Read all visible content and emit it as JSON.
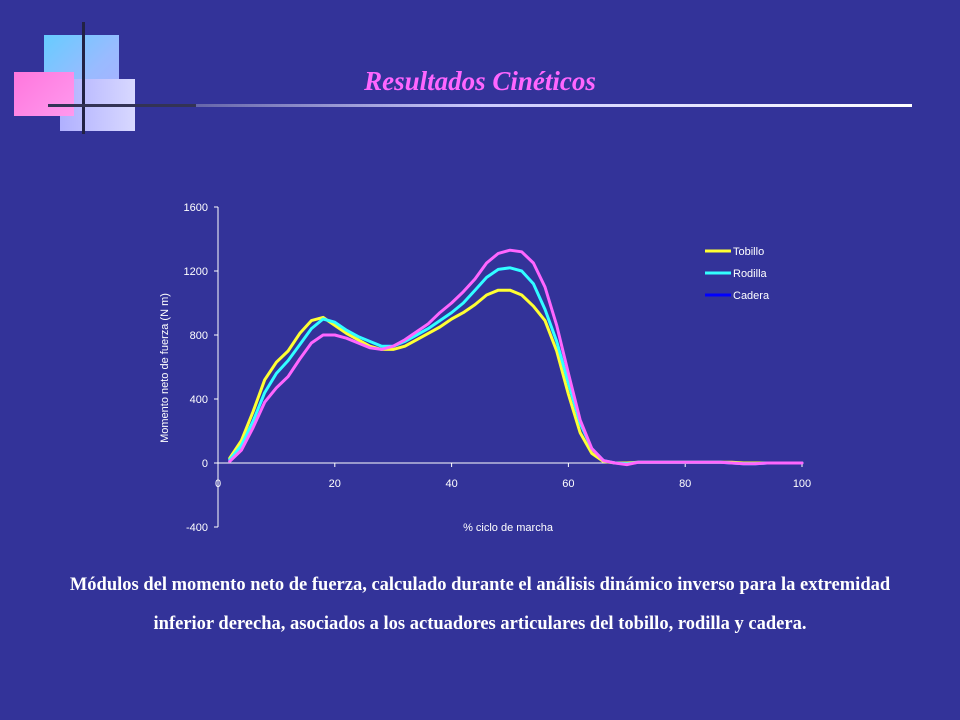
{
  "title": "Resultados Cinéticos",
  "caption": "Módulos del momento neto de fuerza, calculado durante el análisis dinámico inverso para la extremidad inferior derecha, asociados a los actuadores articulares del tobillo, rodilla y cadera.",
  "chart_data": {
    "type": "line",
    "xlabel": "% ciclo de marcha",
    "ylabel": "Momento neto de fuerza (N m)",
    "xlim": [
      0,
      100
    ],
    "ylim": [
      -400,
      1600
    ],
    "xticks": [
      0,
      20,
      40,
      60,
      80,
      100
    ],
    "yticks": [
      -400,
      0,
      400,
      800,
      1200,
      1600
    ],
    "grid": false,
    "legend_position": "top-right",
    "series": [
      {
        "name": "Tobillo",
        "color": "#ffff33",
        "x": [
          2,
          4,
          6,
          8,
          10,
          12,
          14,
          16,
          18,
          20,
          22,
          24,
          26,
          28,
          30,
          32,
          34,
          36,
          38,
          40,
          42,
          44,
          46,
          48,
          50,
          52,
          54,
          56,
          58,
          60,
          62,
          64,
          66,
          68,
          70,
          72,
          74,
          76,
          78,
          80,
          82,
          84,
          86,
          88,
          90,
          92,
          94,
          96,
          98,
          100
        ],
        "y": [
          30,
          140,
          320,
          520,
          630,
          700,
          810,
          890,
          910,
          860,
          810,
          770,
          730,
          710,
          710,
          730,
          770,
          810,
          850,
          900,
          940,
          990,
          1050,
          1080,
          1080,
          1050,
          980,
          890,
          700,
          430,
          190,
          60,
          10,
          0,
          0,
          5,
          5,
          5,
          5,
          5,
          5,
          5,
          5,
          5,
          0,
          0,
          0,
          0,
          0,
          0
        ]
      },
      {
        "name": "Rodilla",
        "color": "#33ffff",
        "x": [
          2,
          4,
          6,
          8,
          10,
          12,
          14,
          16,
          18,
          20,
          22,
          24,
          26,
          28,
          30,
          32,
          34,
          36,
          38,
          40,
          42,
          44,
          46,
          48,
          50,
          52,
          54,
          56,
          58,
          60,
          62,
          64,
          66,
          68,
          70,
          72,
          74,
          76,
          78,
          80,
          82,
          84,
          86,
          88,
          90,
          92,
          94,
          96,
          98,
          100
        ],
        "y": [
          20,
          110,
          260,
          440,
          560,
          640,
          740,
          840,
          900,
          880,
          830,
          790,
          760,
          730,
          730,
          760,
          800,
          840,
          890,
          940,
          1000,
          1080,
          1160,
          1210,
          1220,
          1200,
          1120,
          960,
          760,
          500,
          250,
          90,
          15,
          0,
          -5,
          5,
          5,
          5,
          5,
          5,
          5,
          5,
          5,
          0,
          -5,
          -5,
          0,
          0,
          0,
          0
        ]
      },
      {
        "name": "Cadera",
        "color": "#0000ff",
        "x": [
          2,
          4,
          6,
          8,
          10,
          12,
          14,
          16,
          18,
          20,
          22,
          24,
          26,
          28,
          30,
          32,
          34,
          36,
          38,
          40,
          42,
          44,
          46,
          48,
          50,
          52,
          54,
          56,
          58,
          60,
          62,
          64,
          66,
          68,
          70,
          72,
          74,
          76,
          78,
          80,
          82,
          84,
          86,
          88,
          90,
          92,
          94,
          96,
          98,
          100
        ],
        "y": [
          20,
          110,
          260,
          440,
          560,
          640,
          740,
          840,
          900,
          880,
          830,
          790,
          760,
          730,
          730,
          760,
          800,
          840,
          890,
          940,
          1000,
          1080,
          1160,
          1210,
          1220,
          1200,
          1120,
          960,
          760,
          500,
          250,
          90,
          15,
          0,
          -5,
          5,
          5,
          5,
          5,
          5,
          5,
          5,
          5,
          0,
          -5,
          -5,
          0,
          0,
          0,
          0
        ]
      },
      {
        "name": "",
        "color": "#ff66ff",
        "x": [
          2,
          4,
          6,
          8,
          10,
          12,
          14,
          16,
          18,
          20,
          22,
          24,
          26,
          28,
          30,
          32,
          34,
          36,
          38,
          40,
          42,
          44,
          46,
          48,
          50,
          52,
          54,
          56,
          58,
          60,
          62,
          64,
          66,
          68,
          70,
          72,
          74,
          76,
          78,
          80,
          82,
          84,
          86,
          88,
          90,
          92,
          94,
          96,
          98,
          100
        ],
        "y": [
          10,
          80,
          220,
          380,
          470,
          540,
          650,
          750,
          800,
          800,
          780,
          750,
          720,
          710,
          730,
          770,
          820,
          870,
          940,
          1000,
          1070,
          1150,
          1250,
          1310,
          1330,
          1320,
          1250,
          1100,
          860,
          560,
          270,
          90,
          15,
          0,
          -10,
          5,
          5,
          5,
          5,
          5,
          5,
          5,
          5,
          0,
          -5,
          -5,
          0,
          0,
          0,
          0
        ]
      }
    ]
  }
}
